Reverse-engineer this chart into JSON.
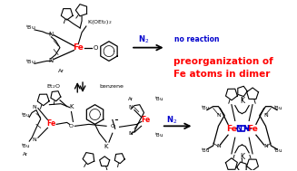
{
  "background_color": "#ffffff",
  "arrow_color": "#000000",
  "n2_color": "#0000cd",
  "no_reaction_color": "#0000cd",
  "preorg_color": "#ff0000",
  "fe_color": "#ff0000",
  "bond_nn_color": "#0000cd",
  "no_reaction_text": "no reaction",
  "preorg_line1": "preorganization of",
  "preorg_line2": "Fe atoms in dimer",
  "figsize": [
    3.27,
    1.89
  ],
  "dpi": 100
}
